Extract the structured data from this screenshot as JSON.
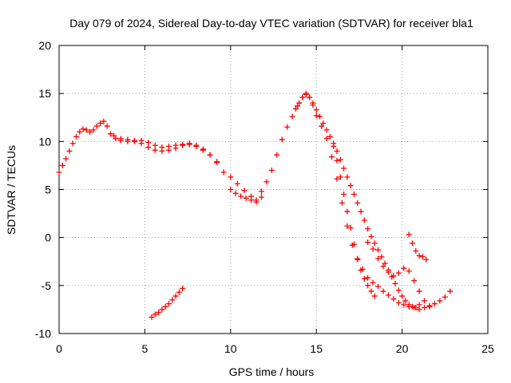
{
  "chart_data": {
    "type": "scatter",
    "title": "Day 079 of 2024, Sidereal Day-to-day VTEC variation (SDTVAR) for receiver bla1",
    "xlabel": "GPS time / hours",
    "ylabel": "SDTVAR / TECUs",
    "xlim": [
      0,
      25
    ],
    "ylim": [
      -10,
      20
    ],
    "xticks": [
      0,
      5,
      10,
      15,
      20,
      25
    ],
    "yticks": [
      -10,
      -5,
      0,
      5,
      10,
      15,
      20
    ],
    "xtick_labels": [
      "0",
      "5",
      "10",
      "15",
      "20",
      "25"
    ],
    "ytick_labels": [
      "-10",
      "-5",
      "0",
      "5",
      "10",
      "15",
      "20"
    ],
    "grid": true,
    "marker": "+",
    "color": "#ff0000",
    "series": [
      {
        "name": "main",
        "x": [
          0.0,
          0.2,
          0.4,
          0.6,
          0.8,
          1.0,
          1.2,
          1.4,
          1.6,
          1.8,
          2.0,
          2.2,
          2.4,
          2.6,
          2.8,
          3.0,
          3.3,
          3.6,
          4.0,
          4.4,
          4.8,
          5.2,
          5.6,
          6.0,
          6.4,
          6.8,
          7.2,
          7.6,
          8.0,
          8.4,
          8.8,
          9.2,
          9.6,
          10.0,
          10.4,
          10.8,
          11.2,
          11.5,
          11.8,
          12.1,
          12.4,
          12.7,
          13.0,
          13.3,
          13.6,
          13.9,
          14.2,
          14.4,
          14.6,
          14.8,
          15.0,
          15.3,
          15.6,
          15.9,
          16.2,
          16.5,
          16.8,
          17.1,
          17.4,
          17.7,
          18.0,
          18.3,
          18.6,
          18.9,
          19.2,
          19.5,
          19.8,
          20.1,
          20.4,
          20.7,
          21.0,
          21.3,
          21.6,
          21.9,
          22.2,
          22.5,
          22.8
        ],
        "y": [
          6.8,
          7.5,
          8.2,
          9.0,
          9.8,
          10.5,
          11.0,
          11.3,
          11.2,
          11.0,
          11.2,
          11.6,
          11.9,
          12.1,
          11.6,
          10.8,
          10.3,
          10.1,
          10.0,
          10.0,
          10.1,
          9.9,
          9.6,
          9.4,
          9.5,
          9.6,
          9.7,
          9.7,
          9.5,
          9.1,
          8.6,
          7.9,
          6.8,
          6.3,
          5.6,
          4.9,
          4.3,
          3.9,
          4.8,
          5.8,
          7.0,
          8.6,
          10.2,
          11.5,
          12.6,
          13.7,
          14.6,
          15.0,
          14.6,
          13.8,
          12.7,
          11.6,
          10.3,
          8.4,
          6.1,
          3.6,
          1.2,
          -0.8,
          -2.3,
          -3.3,
          -4.2,
          -4.7,
          -5.1,
          -5.6,
          -6.0,
          -6.4,
          -6.8,
          -7.0,
          -7.2,
          -7.3,
          -7.5,
          -7.3,
          -7.1,
          -6.9,
          -6.6,
          -6.2,
          -5.6
        ]
      },
      {
        "name": "secondary-arc",
        "x": [
          13.8,
          14.0,
          14.2,
          14.4,
          14.6,
          14.8,
          15.0,
          15.2,
          15.4,
          15.6,
          15.8,
          16.0,
          16.2,
          16.4,
          16.6,
          16.8,
          17.0,
          17.2,
          17.4,
          17.6,
          17.8,
          18.0,
          18.2,
          18.4,
          18.6,
          18.8,
          19.0,
          19.2,
          19.4,
          19.6,
          19.8,
          20.0,
          20.2,
          20.4,
          20.6,
          20.8,
          21.0
        ],
        "y": [
          13.4,
          14.0,
          14.6,
          14.9,
          14.6,
          14.0,
          13.3,
          12.6,
          11.9,
          11.2,
          10.5,
          9.8,
          9.0,
          8.1,
          7.2,
          6.3,
          5.4,
          4.5,
          3.6,
          2.7,
          1.8,
          0.9,
          0.1,
          -0.6,
          -1.3,
          -2.0,
          -2.7,
          -3.4,
          -4.1,
          -4.8,
          -5.5,
          -6.1,
          -6.6,
          -7.0,
          -7.2,
          -7.3,
          -7.0
        ]
      },
      {
        "name": "steep-branch",
        "x": [
          16.0,
          16.2,
          16.4,
          16.6,
          16.8,
          17.0,
          17.2,
          17.4,
          17.6,
          17.8,
          18.0,
          18.2,
          18.4
        ],
        "y": [
          9.5,
          8.0,
          6.3,
          4.5,
          2.7,
          1.0,
          -0.7,
          -2.2,
          -3.4,
          -4.3,
          -5.0,
          -5.6,
          -6.1
        ]
      },
      {
        "name": "late-branch",
        "x": [
          18.0,
          18.3,
          18.6,
          18.9,
          19.2,
          19.5,
          19.8,
          20.1,
          20.4,
          20.7,
          21.0,
          21.3,
          21.6
        ],
        "y": [
          -0.5,
          -1.2,
          -2.2,
          -3.0,
          -3.6,
          -4.0,
          -3.7,
          -3.2,
          -3.5,
          -4.5,
          -5.6,
          -6.6,
          -7.2
        ]
      },
      {
        "name": "small-arc",
        "x": [
          20.4,
          20.6,
          20.8,
          21.0,
          21.2,
          21.4
        ],
        "y": [
          0.3,
          -0.6,
          -1.4,
          -1.9,
          -2.0,
          -2.3
        ]
      },
      {
        "name": "low-arc",
        "x": [
          5.4,
          5.6,
          5.8,
          6.0,
          6.2,
          6.4,
          6.6,
          6.8,
          7.0,
          7.2
        ],
        "y": [
          -8.3,
          -8.0,
          -7.8,
          -7.5,
          -7.2,
          -6.9,
          -6.5,
          -6.1,
          -5.7,
          -5.3
        ]
      },
      {
        "name": "upper-arc",
        "x": [
          3.2,
          3.6,
          4.0,
          4.4,
          4.8,
          5.2,
          5.6,
          6.0,
          6.4,
          6.8,
          7.2,
          7.6,
          8.0,
          8.4,
          8.8,
          9.2
        ],
        "y": [
          10.6,
          10.3,
          10.2,
          10.1,
          9.8,
          9.4,
          9.1,
          9.0,
          9.1,
          9.3,
          9.6,
          9.8,
          9.6,
          9.2,
          8.6,
          7.8
        ]
      },
      {
        "name": "dip-arc",
        "x": [
          10.0,
          10.3,
          10.6,
          10.9,
          11.2,
          11.5,
          11.8
        ],
        "y": [
          5.0,
          4.6,
          4.3,
          4.1,
          3.9,
          3.7,
          4.2
        ]
      }
    ]
  }
}
